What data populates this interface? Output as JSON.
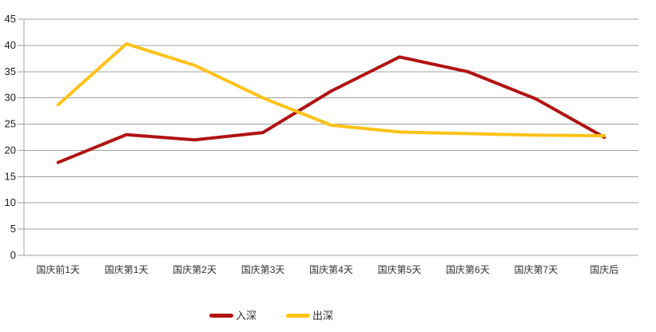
{
  "chart_data": {
    "type": "line",
    "title": "",
    "xlabel": "",
    "ylabel": "",
    "categories": [
      "国庆前1天",
      "国庆第1天",
      "国庆第2天",
      "国庆第3天",
      "国庆第4天",
      "国庆第5天",
      "国庆第6天",
      "国庆第7天",
      "国庆后"
    ],
    "series": [
      {
        "name": "入深",
        "color": "#B01312",
        "values": [
          17.7,
          23,
          22,
          23.4,
          31.3,
          37.8,
          35,
          29.8,
          22.5
        ]
      },
      {
        "name": "出深",
        "color": "#FFC217",
        "values": [
          28.7,
          40.3,
          36.2,
          30,
          24.8,
          23.5,
          23.2,
          22.9,
          22.8
        ]
      }
    ],
    "ylim": [
      0,
      45
    ],
    "y_ticks": [
      0,
      5,
      10,
      15,
      20,
      25,
      30,
      35,
      40,
      45
    ],
    "grid": true,
    "grid_color": "#A0A0A0",
    "axis_color": "#A0A0A0",
    "text_color": "#303030",
    "background": "#FFFFFF",
    "line_width": 4,
    "legend_position": "bottom"
  },
  "legend": {
    "items": [
      {
        "label": "入深",
        "color": "#B01312"
      },
      {
        "label": "出深",
        "color": "#FFC217"
      }
    ]
  }
}
